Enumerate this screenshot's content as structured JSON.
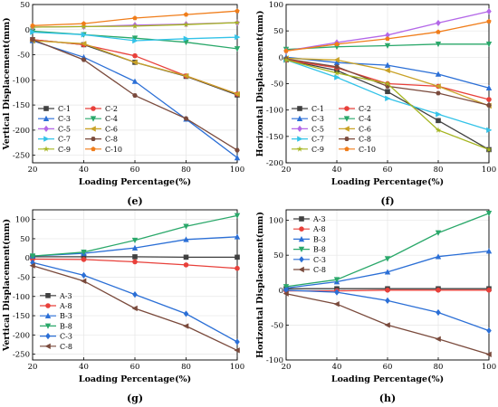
{
  "palette": {
    "C-1": "#404040",
    "C-2": "#e8403a",
    "C-3": "#2b6fd6",
    "C-4": "#2aa86a",
    "C-5": "#b468e8",
    "C-6": "#c9a227",
    "C-7": "#33c3e8",
    "C-8": "#7a4a3c",
    "C-9": "#a5b51f",
    "C-10": "#f07d1a",
    "A-3": "#404040",
    "A-8": "#e8403a",
    "B-3": "#2b6fd6",
    "B-8": "#2aa86a"
  },
  "chart_data": [
    {
      "panel_label": "(e)",
      "type": "line",
      "xlabel": "Loading Percentage(%)",
      "ylabel": "Vertical Displacement(mm)",
      "xlim": [
        20,
        100
      ],
      "ylim": [
        -265,
        50
      ],
      "xticks": [
        20,
        40,
        60,
        80,
        100
      ],
      "yticks": [
        50,
        0,
        -50,
        -100,
        -150,
        -200,
        -250
      ],
      "legend": "bottom-left",
      "x": [
        20,
        40,
        60,
        80,
        100
      ],
      "series": [
        {
          "name": "C-1",
          "values": [
            -20,
            -30,
            -65,
            -93,
            -130
          ]
        },
        {
          "name": "C-2",
          "values": [
            -20,
            -30,
            -52,
            -92,
            -128
          ]
        },
        {
          "name": "C-3",
          "values": [
            -22,
            -55,
            -103,
            -178,
            -255
          ]
        },
        {
          "name": "C-4",
          "values": [
            -3,
            -10,
            -17,
            -25,
            -38
          ]
        },
        {
          "name": "C-5",
          "values": [
            5,
            6,
            9,
            11,
            14
          ]
        },
        {
          "name": "C-6",
          "values": [
            -22,
            -28,
            -65,
            -92,
            -128
          ]
        },
        {
          "name": "C-7",
          "values": [
            -5,
            -10,
            -22,
            -18,
            -15
          ]
        },
        {
          "name": "C-8",
          "values": [
            -20,
            -60,
            -131,
            -177,
            -240
          ]
        },
        {
          "name": "C-9",
          "values": [
            5,
            6,
            7,
            10,
            14
          ]
        },
        {
          "name": "C-10",
          "values": [
            8,
            12,
            23,
            30,
            37
          ]
        }
      ]
    },
    {
      "panel_label": "(f)",
      "type": "line",
      "xlabel": "Loading Percentage(%)",
      "ylabel": "Horizontal Displacement(mm)",
      "xlim": [
        20,
        100
      ],
      "ylim": [
        -200,
        100
      ],
      "xticks": [
        20,
        40,
        60,
        80,
        100
      ],
      "yticks": [
        100,
        50,
        0,
        -50,
        -100,
        -150,
        -200
      ],
      "legend": "bottom-left",
      "x": [
        20,
        40,
        60,
        80,
        100
      ],
      "series": [
        {
          "name": "C-1",
          "values": [
            -5,
            -25,
            -65,
            -120,
            -175
          ]
        },
        {
          "name": "C-2",
          "values": [
            -5,
            -20,
            -50,
            -55,
            -80
          ]
        },
        {
          "name": "C-3",
          "values": [
            0,
            -10,
            -15,
            -32,
            -58
          ]
        },
        {
          "name": "C-4",
          "values": [
            15,
            20,
            22,
            25,
            25
          ]
        },
        {
          "name": "C-5",
          "values": [
            12,
            28,
            42,
            65,
            87
          ]
        },
        {
          "name": "C-6",
          "values": [
            -2,
            -5,
            -25,
            -55,
            -92
          ]
        },
        {
          "name": "C-7",
          "values": [
            -5,
            -38,
            -78,
            -108,
            -138
          ]
        },
        {
          "name": "C-8",
          "values": [
            -3,
            -18,
            -55,
            -68,
            -91
          ]
        },
        {
          "name": "C-9",
          "values": [
            -5,
            -30,
            -50,
            -138,
            -175
          ]
        },
        {
          "name": "C-10",
          "values": [
            12,
            25,
            35,
            48,
            68
          ]
        }
      ]
    },
    {
      "panel_label": "(g)",
      "type": "line",
      "xlabel": "Loading Percentage(%)",
      "ylabel": "Vertical Displacement(mm)",
      "xlim": [
        20,
        100
      ],
      "ylim": [
        -265,
        125
      ],
      "xticks": [
        20,
        40,
        60,
        80,
        100
      ],
      "yticks": [
        100,
        50,
        0,
        -50,
        -100,
        -150,
        -200,
        -250
      ],
      "legend": "bottom-left",
      "x": [
        20,
        40,
        60,
        80,
        100
      ],
      "series": [
        {
          "name": "A-3",
          "values": [
            3,
            3,
            3,
            2,
            2
          ]
        },
        {
          "name": "A-8",
          "values": [
            -3,
            -4,
            -10,
            -18,
            -27
          ]
        },
        {
          "name": "B-3",
          "values": [
            5,
            12,
            26,
            48,
            55
          ]
        },
        {
          "name": "B-8",
          "values": [
            5,
            15,
            46,
            82,
            110
          ]
        },
        {
          "name": "C-3",
          "values": [
            -12,
            -45,
            -95,
            -145,
            -218
          ]
        },
        {
          "name": "C-8",
          "values": [
            -20,
            -60,
            -131,
            -177,
            -240
          ]
        }
      ]
    },
    {
      "panel_label": "(h)",
      "type": "line",
      "xlabel": "Loading Percentage(%)",
      "ylabel": "Horizontal Displacement(mm)",
      "xlim": [
        20,
        100
      ],
      "ylim": [
        -100,
        115
      ],
      "xticks": [
        20,
        40,
        60,
        80,
        100
      ],
      "yticks": [
        100,
        50,
        0,
        -50,
        -100
      ],
      "legend": "top-left",
      "x": [
        20,
        40,
        60,
        80,
        100
      ],
      "series": [
        {
          "name": "A-3",
          "values": [
            2,
            2,
            2,
            2,
            2
          ]
        },
        {
          "name": "A-8",
          "values": [
            -1,
            -1,
            0,
            0,
            0
          ]
        },
        {
          "name": "B-3",
          "values": [
            3,
            12,
            26,
            48,
            56
          ]
        },
        {
          "name": "B-8",
          "values": [
            5,
            15,
            45,
            82,
            110
          ]
        },
        {
          "name": "C-3",
          "values": [
            0,
            -3,
            -15,
            -32,
            -58
          ]
        },
        {
          "name": "C-8",
          "values": [
            -5,
            -20,
            -50,
            -70,
            -92
          ]
        }
      ]
    }
  ]
}
